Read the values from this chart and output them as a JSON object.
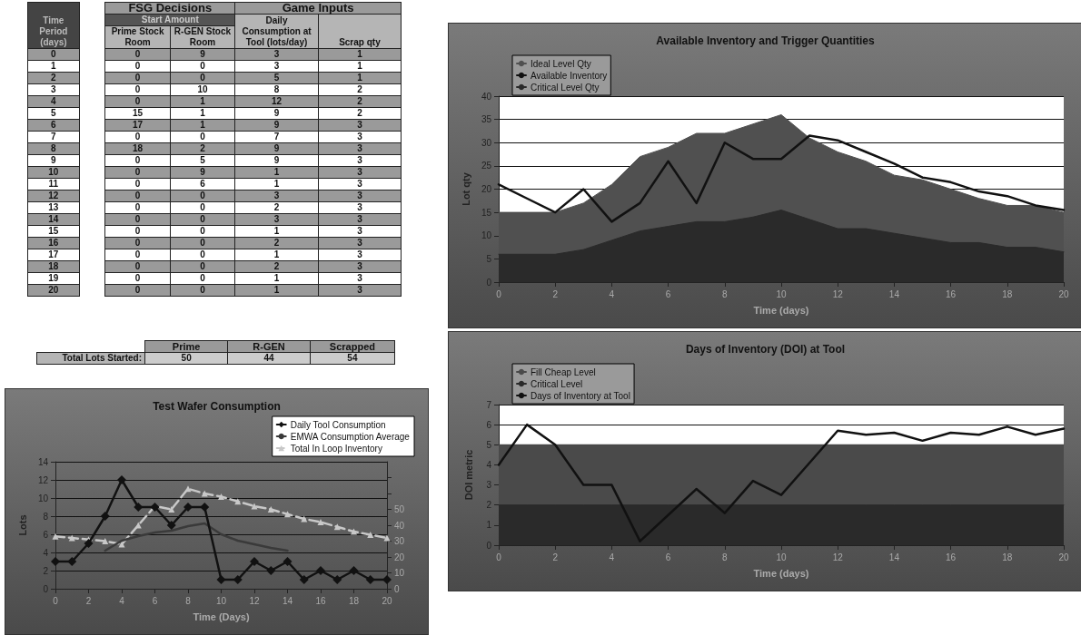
{
  "chart_data": [
    {
      "type": "heatmap",
      "title": "FSG Decisions",
      "annotations": [
        "Game Inputs",
        "Start Amount"
      ],
      "ylabel": "Time Period (days)",
      "categories": [
        "Prime Stock Room",
        "R-GEN Stock Room",
        "Daily Consumption at Tool (lots/day)",
        "Scrap qty"
      ],
      "y_categories": [
        "0",
        "1",
        "2",
        "3",
        "4",
        "5",
        "6",
        "7",
        "8",
        "9",
        "10",
        "11",
        "12",
        "13",
        "14",
        "15",
        "16",
        "17",
        "18",
        "19",
        "20"
      ],
      "data_labels": true,
      "cells": [
        [
          0,
          9,
          3,
          1
        ],
        [
          0,
          0,
          3,
          1
        ],
        [
          0,
          0,
          5,
          1
        ],
        [
          0,
          10,
          8,
          2
        ],
        [
          0,
          1,
          12,
          2
        ],
        [
          15,
          1,
          9,
          2
        ],
        [
          17,
          1,
          9,
          3
        ],
        [
          0,
          0,
          7,
          3
        ],
        [
          18,
          2,
          9,
          3
        ],
        [
          0,
          5,
          9,
          3
        ],
        [
          0,
          9,
          1,
          3
        ],
        [
          0,
          6,
          1,
          3
        ],
        [
          0,
          0,
          3,
          3
        ],
        [
          0,
          0,
          2,
          3
        ],
        [
          0,
          0,
          3,
          3
        ],
        [
          0,
          0,
          1,
          3
        ],
        [
          0,
          0,
          2,
          3
        ],
        [
          0,
          0,
          1,
          3
        ],
        [
          0,
          0,
          2,
          3
        ],
        [
          0,
          0,
          1,
          3
        ],
        [
          0,
          0,
          1,
          3
        ]
      ]
    },
    {
      "type": "area",
      "title": "Available Inventory and Trigger Quantities",
      "xlabel": "Time (days)",
      "ylabel": "Lot qty",
      "x": [
        0,
        1,
        2,
        3,
        4,
        5,
        6,
        7,
        8,
        9,
        10,
        11,
        12,
        13,
        14,
        15,
        16,
        17,
        18,
        19,
        20
      ],
      "xlim": [
        0,
        20
      ],
      "xticks": [
        0,
        2,
        4,
        6,
        8,
        10,
        12,
        14,
        16,
        18,
        20
      ],
      "ylim": [
        0,
        40
      ],
      "yticks": [
        0,
        5,
        10,
        15,
        20,
        25,
        30,
        35,
        40
      ],
      "grid": "y",
      "legend": "top left",
      "series": [
        {
          "name": "Ideal Level Qty",
          "type": "area",
          "color": "#505050",
          "values": [
            15,
            15,
            15,
            17,
            21,
            27,
            29,
            32,
            32,
            34,
            36,
            31,
            28,
            26,
            23,
            22,
            20,
            18,
            16.5,
            16.5,
            15
          ]
        },
        {
          "name": "Available Inventory",
          "type": "line",
          "color": "#111111",
          "values": [
            21,
            18,
            15,
            20,
            13,
            17,
            26,
            17,
            30,
            26.5,
            26.5,
            31.5,
            30.5,
            28,
            25.5,
            22.5,
            21.5,
            19.5,
            18.5,
            16.5,
            15.5
          ]
        },
        {
          "name": "Critical Level Qty",
          "type": "area",
          "color": "#2a2a2a",
          "values": [
            6,
            6,
            6,
            7,
            9,
            11,
            12,
            13,
            13,
            14,
            15.5,
            13.5,
            11.5,
            11.5,
            10.5,
            9.5,
            8.5,
            8.5,
            7.5,
            7.5,
            6.5
          ]
        }
      ]
    },
    {
      "type": "heatmap",
      "categories": [
        "Prime",
        "R-GEN",
        "Scrapped"
      ],
      "y_categories": [
        "Total Lots Started:"
      ],
      "data_labels": true,
      "cells": [
        [
          50,
          44,
          54
        ]
      ]
    },
    {
      "type": "line",
      "title": "Test Wafer Consumption",
      "xlabel": "Time (Days)",
      "ylabel": "Lots",
      "x": [
        0,
        1,
        2,
        3,
        4,
        5,
        6,
        7,
        8,
        9,
        10,
        11,
        12,
        13,
        14,
        15,
        16,
        17,
        18,
        19,
        20
      ],
      "xlim": [
        0,
        20
      ],
      "xticks": [
        0,
        2,
        4,
        6,
        8,
        10,
        12,
        14,
        16,
        18,
        20
      ],
      "ylim": [
        0,
        14
      ],
      "yticks": [
        0,
        2,
        4,
        6,
        8,
        10,
        12,
        14
      ],
      "y2lim": [
        0,
        80
      ],
      "y2ticks": [
        0,
        10,
        20,
        30,
        40,
        50,
        {
          "value": 60,
          "label": null
        },
        {
          "value": 70,
          "label": null
        }
      ],
      "grid": "y",
      "legend": "top right",
      "series": [
        {
          "name": "Daily Tool Consumption",
          "color": "#111111",
          "marker": "diamond",
          "line_style": "solid",
          "values": [
            3,
            3,
            5,
            8,
            12,
            9,
            9,
            7,
            9,
            9,
            1,
            1,
            3,
            2,
            3,
            1,
            2,
            1,
            2,
            1,
            1
          ]
        },
        {
          "name": "EMWA Consumption Average",
          "color": "#3a3a3a",
          "marker": "none",
          "line_style": "solid",
          "x": [
            3,
            4,
            5,
            6,
            7,
            8,
            9,
            10,
            11,
            12,
            13,
            14
          ],
          "values": [
            4.2,
            5.3,
            5.8,
            6.2,
            6.4,
            6.9,
            7.2,
            6,
            5.3,
            4.9,
            4.5,
            4.2
          ]
        },
        {
          "name": "Total In Loop Inventory",
          "color": "#c8c8c8",
          "marker": "triangle",
          "line_style": "dashed",
          "axis": "y2",
          "values": [
            33,
            32,
            31,
            30,
            28,
            40,
            52,
            50,
            63,
            60,
            58,
            55,
            52,
            50,
            47,
            44,
            42,
            39,
            36,
            34,
            32
          ]
        }
      ]
    },
    {
      "type": "area",
      "title": "Days of Inventory (DOI) at Tool",
      "xlabel": "Time (days)",
      "ylabel": "DOI metric",
      "x": [
        0,
        1,
        2,
        3,
        4,
        5,
        6,
        7,
        8,
        9,
        10,
        11,
        12,
        13,
        14,
        15,
        16,
        17,
        18,
        19,
        20
      ],
      "xlim": [
        0,
        20
      ],
      "xticks": [
        0,
        2,
        4,
        6,
        8,
        10,
        12,
        14,
        16,
        18,
        20
      ],
      "ylim": [
        0,
        7
      ],
      "yticks": [
        0,
        1,
        2,
        3,
        4,
        5,
        6,
        7
      ],
      "grid": "y",
      "legend": "top left",
      "series": [
        {
          "name": "Fill Cheap Level",
          "type": "area",
          "color": "#4a4a4a",
          "values": [
            5,
            5,
            5,
            5,
            5,
            5,
            5,
            5,
            5,
            5,
            5,
            5,
            5,
            5,
            5,
            5,
            5,
            5,
            5,
            5,
            5
          ]
        },
        {
          "name": "Critical Level",
          "type": "area",
          "color": "#2a2a2a",
          "values": [
            2,
            2,
            2,
            2,
            2,
            2,
            2,
            2,
            2,
            2,
            2,
            2,
            2,
            2,
            2,
            2,
            2,
            2,
            2,
            2,
            2
          ]
        },
        {
          "name": "Days of Inventory at Tool",
          "type": "line",
          "color": "#111111",
          "values": [
            4,
            6,
            5,
            3,
            3,
            0.2,
            1.5,
            2.8,
            1.6,
            3.2,
            2.5,
            4.1,
            5.7,
            5.5,
            5.6,
            5.2,
            5.6,
            5.5,
            5.9,
            5.5,
            5.8
          ]
        }
      ]
    }
  ]
}
